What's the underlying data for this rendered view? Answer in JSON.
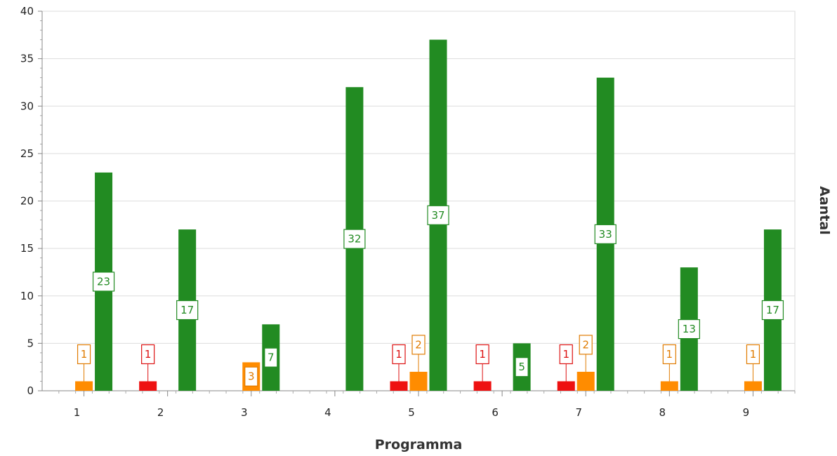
{
  "chart_data": {
    "type": "bar",
    "title": "",
    "xlabel": "Programma",
    "ylabel": "Aantal",
    "categories": [
      "1",
      "2",
      "3",
      "4",
      "5",
      "6",
      "7",
      "8",
      "9"
    ],
    "ylim": [
      0,
      40
    ],
    "yticks": [
      0,
      5,
      10,
      15,
      20,
      25,
      30,
      35,
      40
    ],
    "grid": true,
    "legend": "none",
    "series": [
      {
        "color": "#ee1111",
        "values": [
          0,
          1,
          0,
          0,
          1,
          1,
          1,
          0,
          0
        ]
      },
      {
        "color": "#ff8c00",
        "values": [
          1,
          0,
          3,
          0,
          2,
          0,
          2,
          1,
          1
        ]
      },
      {
        "color": "#228b22",
        "values": [
          23,
          17,
          7,
          32,
          37,
          5,
          33,
          13,
          17
        ]
      }
    ],
    "label_colors": [
      "#dd1111",
      "#e07b00",
      "#228b22"
    ]
  }
}
